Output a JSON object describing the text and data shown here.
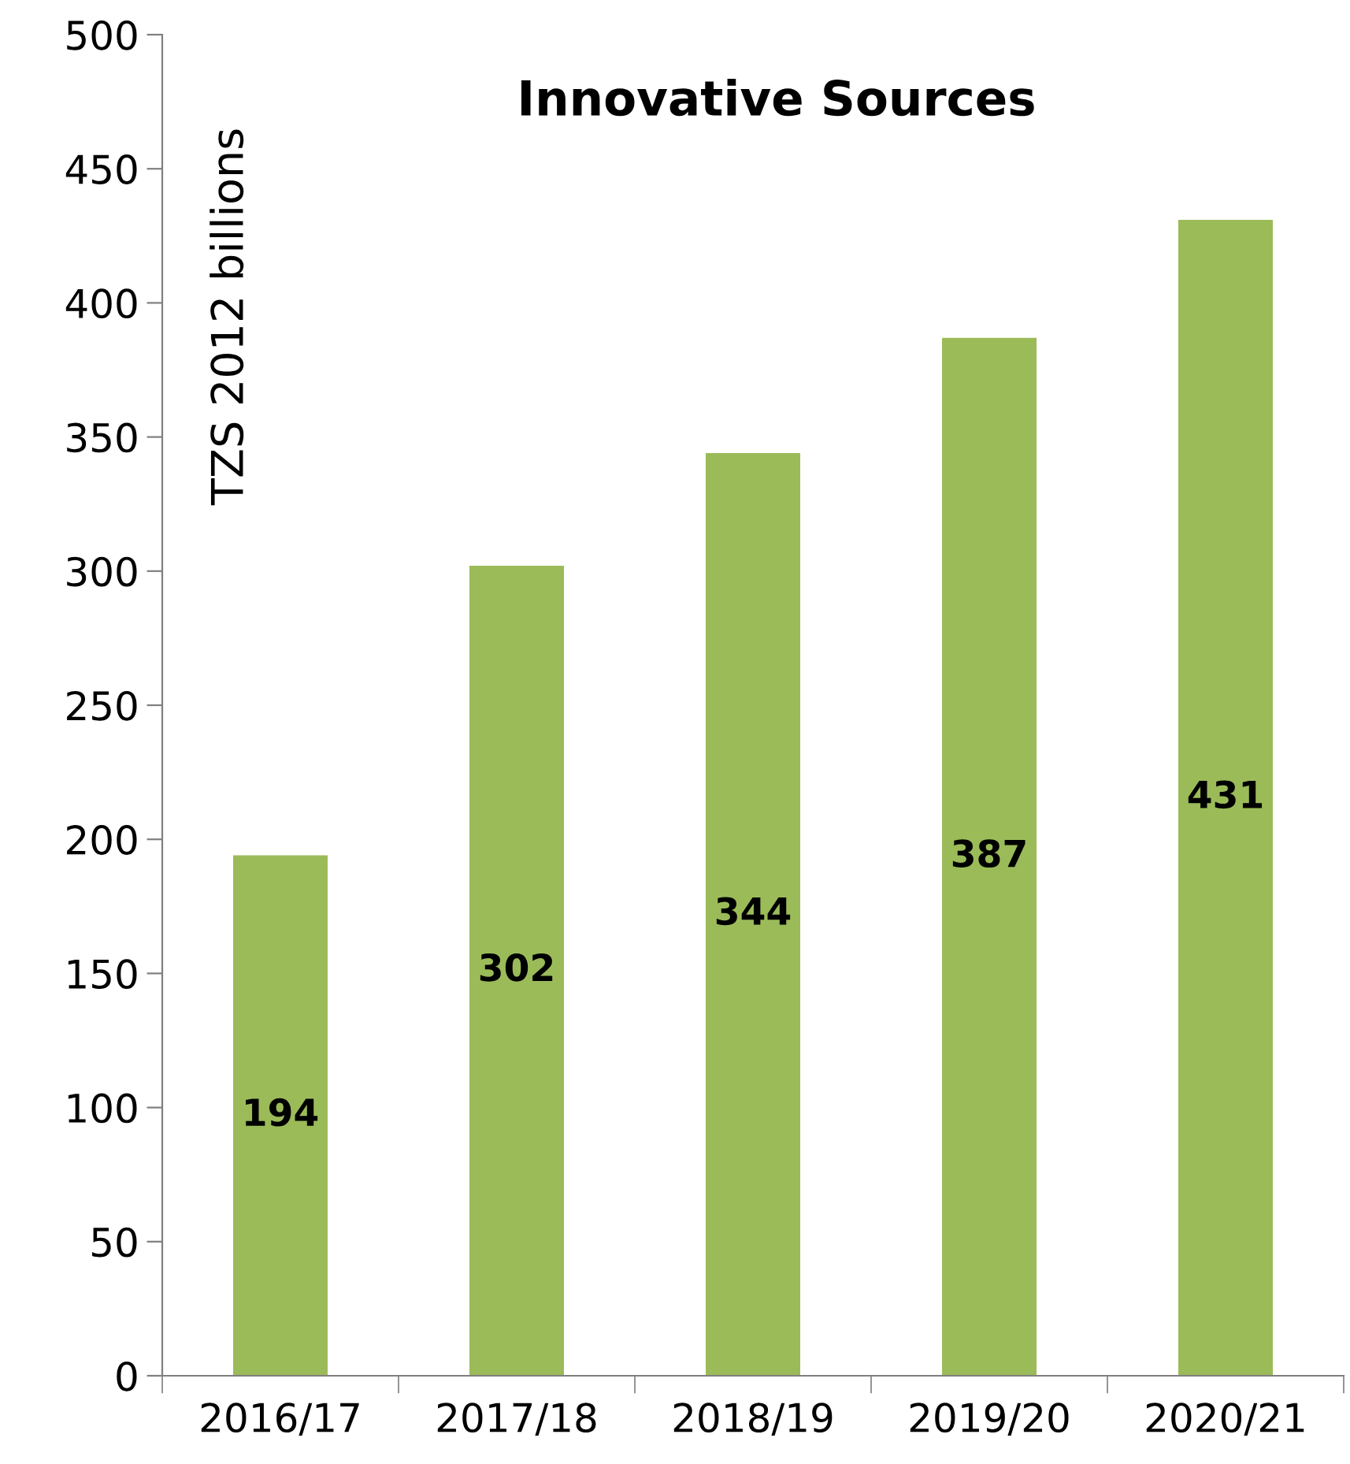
{
  "chart_data": {
    "type": "bar",
    "title": "Innovative Sources",
    "ylabel": "TZS 2012 billions",
    "categories": [
      "2016/17",
      "2017/18",
      "2018/19",
      "2019/20",
      "2020/21"
    ],
    "values": [
      194,
      302,
      344,
      387,
      431
    ],
    "color": "#9bbb59",
    "ylim": [
      0,
      500
    ],
    "yticks": [
      0,
      50,
      100,
      150,
      200,
      250,
      300,
      350,
      400,
      450,
      500
    ],
    "data_labels": true,
    "grid": false,
    "legend": false
  }
}
